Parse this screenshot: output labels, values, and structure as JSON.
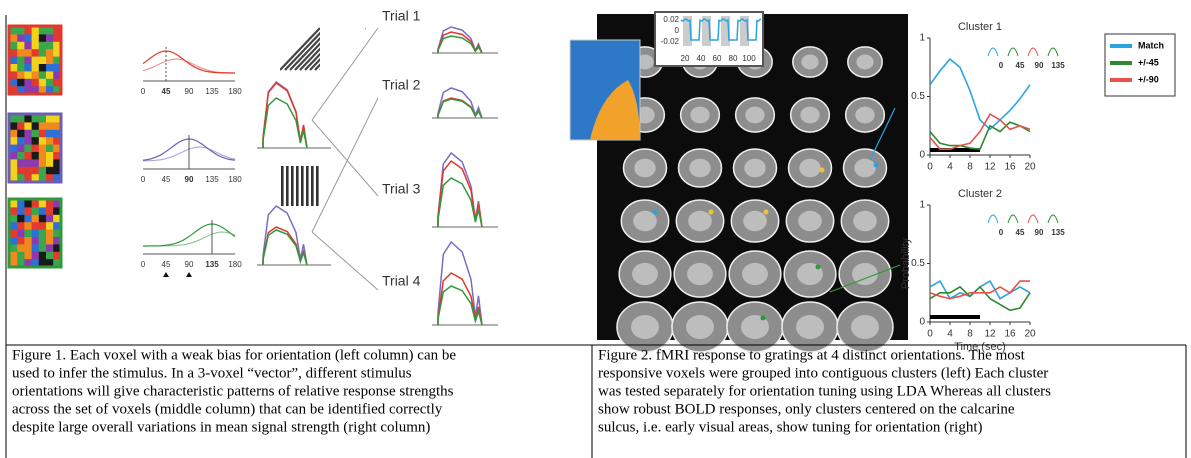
{
  "figure1": {
    "orientation_labels": [
      [
        "0",
        "45",
        "90",
        "135",
        "180"
      ],
      [
        "0",
        "45",
        "90",
        "135",
        "180"
      ],
      [
        "0",
        "45",
        "90",
        "135",
        "180"
      ]
    ],
    "trials": [
      "Trial 1",
      "Trial 2",
      "Trial 3",
      "Trial 4"
    ],
    "caption": [
      "Figure 1. Each voxel with a weak bias for orientation (left column) can be",
      "used to infer the stimulus. In a 3-voxel “vector”, different stimulus",
      "orientations will give characteristic patterns of relative response strengths",
      "across the set of voxels (middle column) that can be identified correctly",
      "despite large overall variations in mean signal strength (right column)"
    ]
  },
  "figure2": {
    "inset": {
      "yticks": [
        "0.02",
        "0",
        "-0.02"
      ],
      "xticks": [
        "20",
        "40",
        "60",
        "80",
        "100"
      ]
    },
    "clusters": [
      {
        "type": "line",
        "title": "Cluster 1",
        "x": [
          0,
          2,
          4,
          6,
          8,
          10,
          12,
          14,
          16,
          18,
          20
        ],
        "xlim": [
          0,
          20
        ],
        "ylim": [
          0,
          1
        ],
        "xticks": [
          0,
          4,
          8,
          12,
          16,
          20
        ],
        "yticks": [
          0,
          0.5,
          1
        ],
        "icon_labels": [
          "0",
          "45",
          "90",
          "135"
        ],
        "series": [
          {
            "name": "Match",
            "color": "#2aa3e2",
            "values": [
              0.6,
              0.72,
              0.82,
              0.75,
              0.55,
              0.3,
              0.22,
              0.3,
              0.38,
              0.48,
              0.6
            ]
          },
          {
            "name": "+/-45",
            "color": "#2f8a2f",
            "values": [
              0.2,
              0.1,
              0.08,
              0.08,
              0.06,
              0.05,
              0.25,
              0.2,
              0.28,
              0.25,
              0.2
            ]
          },
          {
            "name": "+/-90",
            "color": "#e8524b",
            "values": [
              0.15,
              0.05,
              0.05,
              0.08,
              0.1,
              0.2,
              0.35,
              0.3,
              0.22,
              0.25,
              0.22
            ]
          }
        ]
      },
      {
        "type": "line",
        "title": "Cluster 2",
        "x": [
          0,
          2,
          4,
          6,
          8,
          10,
          12,
          14,
          16,
          18,
          20
        ],
        "xlim": [
          0,
          20
        ],
        "ylim": [
          0,
          1
        ],
        "xticks": [
          0,
          4,
          8,
          12,
          16,
          20
        ],
        "yticks": [
          0,
          0.5,
          1
        ],
        "icon_labels": [
          "0",
          "45",
          "90",
          "135"
        ],
        "y_label": "Probability",
        "x_label": "Time (sec)",
        "series": [
          {
            "name": "Match",
            "color": "#2aa3e2",
            "values": [
              0.3,
              0.35,
              0.2,
              0.25,
              0.22,
              0.3,
              0.35,
              0.2,
              0.25,
              0.3,
              0.25
            ]
          },
          {
            "name": "+/-45",
            "color": "#2f8a2f",
            "values": [
              0.2,
              0.25,
              0.25,
              0.3,
              0.22,
              0.3,
              0.2,
              0.15,
              0.1,
              0.12,
              0.25
            ]
          },
          {
            "name": "+/-90",
            "color": "#e8524b",
            "values": [
              0.25,
              0.22,
              0.2,
              0.22,
              0.25,
              0.25,
              0.25,
              0.3,
              0.25,
              0.35,
              0.35
            ]
          }
        ]
      }
    ],
    "caption": [
      "Figure 2. fMRI response to gratings at 4 distinct orientations. The most",
      "responsive voxels were grouped into contiguous clusters (left) Each cluster",
      "was tested separately for orientation tuning using LDA Whereas all clusters",
      "show robust BOLD responses, only clusters centered on the calcarine",
      "sulcus, i.e. early visual areas, show tuning for orientation (right)"
    ]
  }
}
